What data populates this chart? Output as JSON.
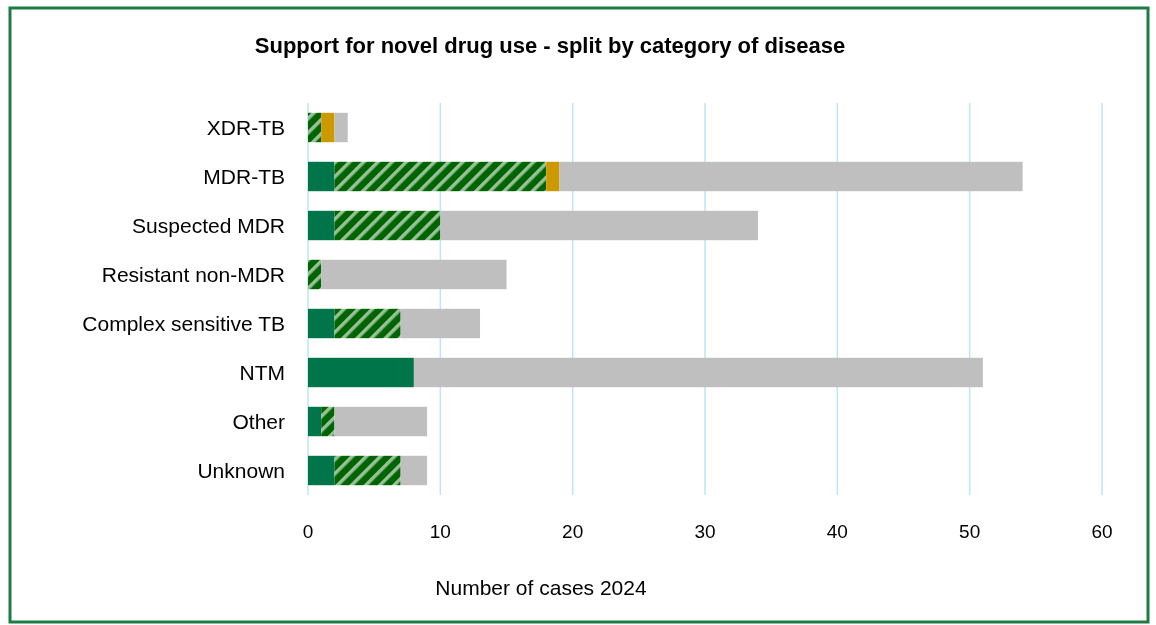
{
  "chart_data": {
    "type": "bar",
    "orientation": "horizontal",
    "stacked": true,
    "title": "Support for novel drug use - split by category of disease",
    "xlabel": "Number of cases 2024",
    "categories": [
      "XDR-TB",
      "MDR-TB",
      "Suspected MDR",
      "Resistant non-MDR",
      "Complex sensitive TB",
      "NTM",
      "Other",
      "Unknown"
    ],
    "series": [
      {
        "color": "#00754a",
        "values": [
          0,
          2,
          2,
          0,
          2,
          8,
          1,
          2
        ]
      },
      {
        "color": "#006400",
        "values": [
          1,
          16,
          8,
          1,
          5,
          0,
          1,
          5
        ]
      },
      {
        "color": "#cc9900",
        "values": [
          1,
          1,
          0,
          0,
          0,
          0,
          0,
          0
        ]
      },
      {
        "color": "#bfbfbf",
        "values": [
          1,
          35,
          24,
          14,
          6,
          43,
          7,
          2
        ]
      }
    ],
    "xlim": [
      0,
      60
    ],
    "xticks": [
      0,
      10,
      20,
      30,
      40,
      50,
      60
    ],
    "grid": "x"
  }
}
